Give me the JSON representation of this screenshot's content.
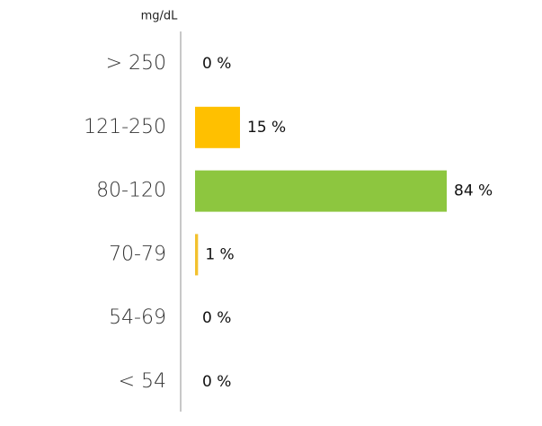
{
  "chart_data": {
    "type": "bar",
    "orientation": "horizontal",
    "unit_label": "mg/dL",
    "categories": [
      "> 250",
      "121-250",
      "80-120",
      "70-79",
      "54-69",
      "< 54"
    ],
    "values": [
      0,
      15,
      84,
      1,
      0,
      0
    ],
    "value_labels": [
      "0 %",
      "15 %",
      "84 %",
      "1 %",
      "0 %",
      "0 %"
    ],
    "colors": [
      null,
      "#ffc000",
      "#8dc63f",
      "#f2c12e",
      null,
      null
    ]
  }
}
